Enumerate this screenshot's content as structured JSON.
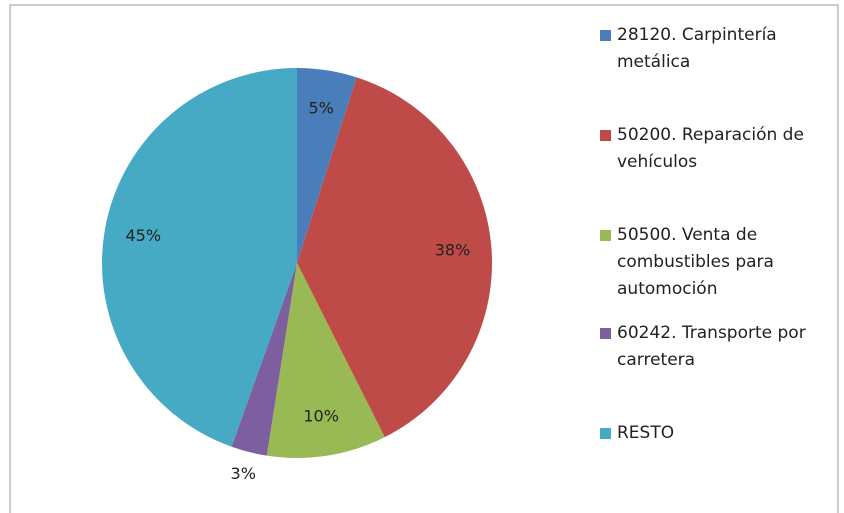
{
  "chart_data": {
    "type": "pie",
    "categories": [
      "28120. Carpintería metálica",
      "50200. Reparación de vehículos",
      "50500. Venta de combustibles para automoción",
      "60242. Transporte por carretera",
      "RESTO"
    ],
    "values": [
      5,
      38,
      10,
      3,
      45
    ],
    "value_labels": [
      "5%",
      "38%",
      "10%",
      "3%",
      "45%"
    ],
    "colors": [
      "#4a7ebb",
      "#be4b48",
      "#98b954",
      "#7d5fa0",
      "#46aac5"
    ],
    "legend": "right"
  }
}
